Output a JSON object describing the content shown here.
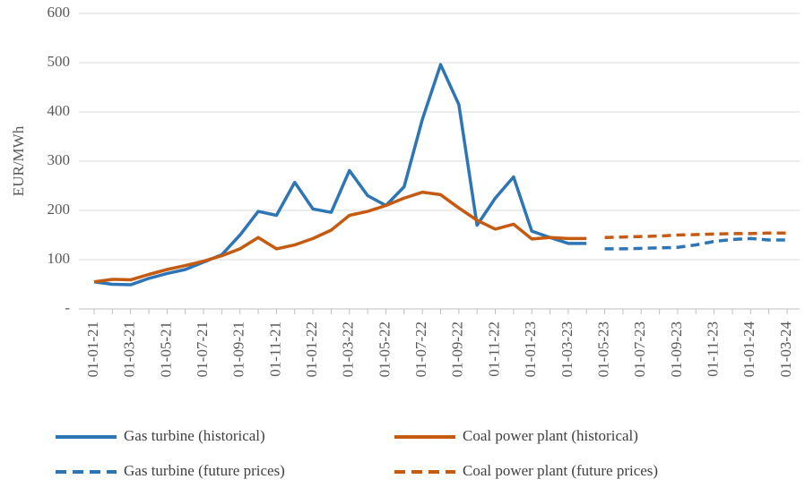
{
  "chart_data": {
    "type": "line",
    "y_label": "EUR/MWh",
    "categories": [
      "01-01-21",
      null,
      "01-03-21",
      null,
      "01-05-21",
      null,
      "01-07-21",
      null,
      "01-09-21",
      null,
      "01-11-21",
      null,
      "01-01-22",
      null,
      "01-03-22",
      null,
      "01-05-22",
      null,
      "01-07-22",
      null,
      "01-09-22",
      null,
      "01-11-22",
      null,
      "01-01-23",
      null,
      "01-03-23",
      null,
      "01-05-23",
      null,
      "01-07-23",
      null,
      "01-09-23",
      null,
      "01-11-23",
      null,
      "01-01-24",
      null,
      "01-03-24"
    ],
    "series": [
      {
        "name": "Gas turbine (historical)",
        "color": "#2e75b6",
        "dashed": false,
        "values": [
          55,
          50,
          49,
          62,
          72,
          80,
          95,
          110,
          150,
          198,
          190,
          257,
          203,
          196,
          281,
          230,
          210,
          248,
          385,
          496,
          415,
          170,
          225,
          268,
          158,
          145,
          133,
          133,
          null,
          null,
          null,
          null,
          null,
          null,
          null,
          null,
          null,
          null,
          null
        ]
      },
      {
        "name": "Coal power plant (historical)",
        "color": "#c55a11",
        "dashed": false,
        "values": [
          55,
          60,
          59,
          70,
          80,
          88,
          97,
          108,
          122,
          145,
          122,
          130,
          143,
          160,
          190,
          198,
          210,
          225,
          237,
          232,
          205,
          180,
          162,
          172,
          142,
          145,
          143,
          143,
          null,
          null,
          null,
          null,
          null,
          null,
          null,
          null,
          null,
          null,
          null
        ]
      },
      {
        "name": "Gas turbine (future prices)",
        "color": "#2e75b6",
        "dashed": true,
        "values": [
          null,
          null,
          null,
          null,
          null,
          null,
          null,
          null,
          null,
          null,
          null,
          null,
          null,
          null,
          null,
          null,
          null,
          null,
          null,
          null,
          null,
          null,
          null,
          null,
          null,
          null,
          null,
          null,
          122,
          122,
          123,
          124,
          125,
          130,
          137,
          141,
          143,
          140,
          140
        ]
      },
      {
        "name": "Coal power plant (future prices)",
        "color": "#c55a11",
        "dashed": true,
        "values": [
          null,
          null,
          null,
          null,
          null,
          null,
          null,
          null,
          null,
          null,
          null,
          null,
          null,
          null,
          null,
          null,
          null,
          null,
          null,
          null,
          null,
          null,
          null,
          null,
          null,
          null,
          null,
          null,
          145,
          146,
          147,
          148,
          150,
          151,
          152,
          153,
          153,
          154,
          154
        ]
      }
    ],
    "ylim": [
      0,
      600
    ],
    "yticks": [
      {
        "value": 0,
        "label": "-"
      },
      100,
      200,
      300,
      400,
      500,
      600
    ],
    "grid": true
  }
}
